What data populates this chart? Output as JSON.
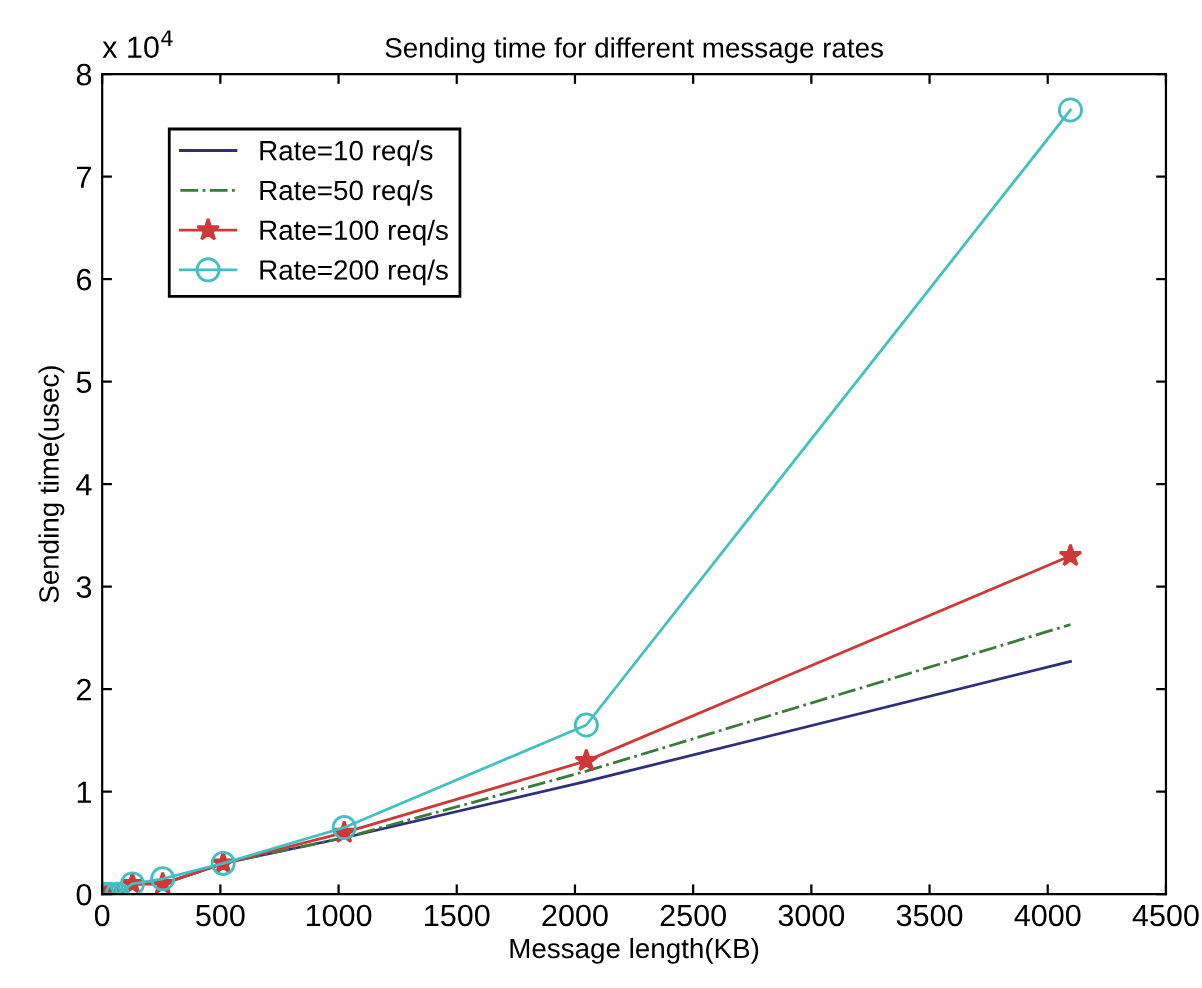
{
  "chart_data": {
    "type": "line",
    "title": "Sending time for different message rates",
    "xlabel": "Message length(KB)",
    "ylabel": "Sending time(usec)",
    "x": [
      1,
      16,
      32,
      64,
      128,
      256,
      512,
      1024,
      2048,
      4096
    ],
    "series": [
      {
        "name": "Rate=10 req/s",
        "color": "#2e2e7a",
        "marker": "none",
        "line_style": "solid",
        "values": [
          null,
          null,
          null,
          0,
          0.1,
          0.1,
          0.3,
          0.55,
          1.1,
          2.27
        ]
      },
      {
        "name": "Rate=50 req/s",
        "color": "#3a7a3a",
        "marker": "none",
        "line_style": "dashdot",
        "values": [
          0,
          0,
          0,
          0,
          0.1,
          0.1,
          0.3,
          0.55,
          1.2,
          2.63
        ]
      },
      {
        "name": "Rate=100 req/s",
        "color": "#d03838",
        "marker": "star",
        "line_style": "solid",
        "values": [
          0,
          0,
          0,
          0,
          0.1,
          0.1,
          0.3,
          0.6,
          1.3,
          3.3
        ]
      },
      {
        "name": "Rate=200 req/s",
        "color": "#40c0c0",
        "marker": "circle",
        "line_style": "solid",
        "values": [
          0,
          0,
          0,
          0,
          0.1,
          0.15,
          0.3,
          0.65,
          1.65,
          7.65
        ]
      }
    ],
    "xlim": [
      0,
      4500
    ],
    "xticks": [
      0,
      500,
      1000,
      1500,
      2000,
      2500,
      3000,
      3500,
      4000,
      4500
    ],
    "ylim": [
      0,
      8
    ],
    "yticks": [
      0,
      1,
      2,
      3,
      4,
      5,
      6,
      7,
      8
    ],
    "annotations": [
      "x 10$^{4}$"
    ],
    "legend": "top left",
    "grid": false
  }
}
